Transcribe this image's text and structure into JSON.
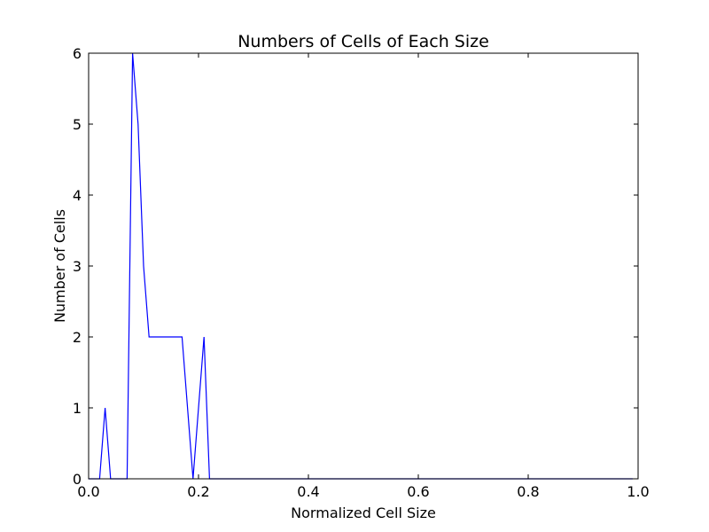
{
  "chart_data": {
    "type": "line",
    "title": "Numbers of Cells of Each Size",
    "xlabel": "Normalized Cell Size",
    "ylabel": "Number of Cells",
    "xlim": [
      0.0,
      1.0
    ],
    "ylim": [
      0,
      6
    ],
    "xticks": [
      "0.0",
      "0.2",
      "0.4",
      "0.6",
      "0.8",
      "1.0"
    ],
    "yticks": [
      "0",
      "1",
      "2",
      "3",
      "4",
      "5",
      "6"
    ],
    "grid": false,
    "line_color": "#0000ff",
    "series": [
      {
        "x": [
          0.0,
          0.01,
          0.02,
          0.03,
          0.04,
          0.05,
          0.06,
          0.07,
          0.08,
          0.09,
          0.1,
          0.11,
          0.12,
          0.13,
          0.14,
          0.15,
          0.16,
          0.17,
          0.18,
          0.19,
          0.2,
          0.21,
          0.22,
          0.23,
          0.24,
          0.25,
          0.26,
          0.27,
          0.28,
          0.29,
          0.3,
          0.31,
          0.32,
          0.33,
          0.34,
          0.35,
          0.36,
          0.37,
          0.38,
          0.39,
          0.4,
          0.41,
          0.42,
          0.43,
          0.44,
          0.45,
          0.46,
          0.47,
          0.48,
          0.49,
          0.5,
          0.51,
          0.52,
          0.53,
          0.54,
          0.55,
          0.56,
          0.57,
          0.58,
          0.59,
          0.6,
          0.61,
          0.62,
          0.63,
          0.64,
          0.65,
          0.66,
          0.67,
          0.68,
          0.69,
          0.7,
          0.71,
          0.72,
          0.73,
          0.74,
          0.75,
          0.76,
          0.77,
          0.78,
          0.79,
          0.8,
          0.81,
          0.82,
          0.83,
          0.84,
          0.85,
          0.86,
          0.87,
          0.88,
          0.89,
          0.9,
          0.91,
          0.92,
          0.93,
          0.94,
          0.95,
          0.96,
          0.97,
          0.98,
          0.99
        ],
        "y": [
          0,
          0,
          0,
          1,
          0,
          0,
          0,
          0,
          6,
          5,
          3,
          2,
          2,
          2,
          2,
          2,
          2,
          2,
          1,
          0,
          1,
          2,
          0,
          0,
          0,
          0,
          0,
          0,
          0,
          0,
          0,
          0,
          0,
          0,
          0,
          0,
          0,
          0,
          0,
          0,
          0,
          0,
          0,
          0,
          0,
          0,
          0,
          0,
          0,
          0,
          0,
          0,
          0,
          0,
          0,
          0,
          0,
          0,
          0,
          0,
          0,
          0,
          0,
          0,
          0,
          0,
          0,
          0,
          0,
          0,
          0,
          0,
          0,
          0,
          0,
          0,
          0,
          0,
          0,
          0,
          0,
          0,
          0,
          0,
          0,
          0,
          0,
          0,
          0,
          0,
          0,
          0,
          0,
          0,
          0,
          0,
          0,
          0,
          0,
          0
        ]
      }
    ]
  }
}
